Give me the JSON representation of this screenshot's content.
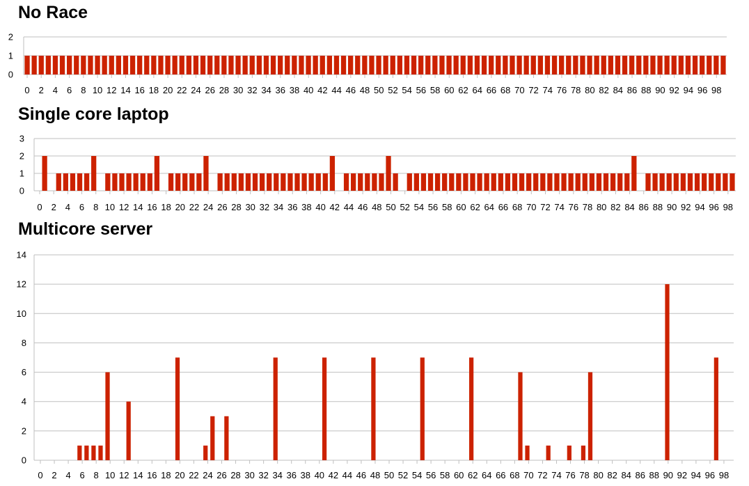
{
  "page": {
    "background": "#ffffff",
    "bar_color": "#cc2200",
    "grid_color": "#bfbfbf"
  },
  "chart_data": [
    {
      "type": "bar",
      "title": "No Race",
      "xlabel": "",
      "ylabel": "",
      "ylim": [
        0,
        2
      ],
      "yticks": [
        0,
        1,
        2
      ],
      "x_tick_labels": [
        "0",
        "2",
        "4",
        "6",
        "8",
        "10",
        "12",
        "14",
        "16",
        "18",
        "20",
        "22",
        "24",
        "26",
        "28",
        "30",
        "32",
        "34",
        "36",
        "38",
        "40",
        "42",
        "44",
        "46",
        "48",
        "50",
        "52",
        "54",
        "56",
        "58",
        "60",
        "62",
        "64",
        "66",
        "68",
        "70",
        "72",
        "74",
        "76",
        "78",
        "80",
        "82",
        "84",
        "86",
        "88",
        "90",
        "92",
        "94",
        "96",
        "98"
      ],
      "categories": [
        0,
        1,
        2,
        3,
        4,
        5,
        6,
        7,
        8,
        9,
        10,
        11,
        12,
        13,
        14,
        15,
        16,
        17,
        18,
        19,
        20,
        21,
        22,
        23,
        24,
        25,
        26,
        27,
        28,
        29,
        30,
        31,
        32,
        33,
        34,
        35,
        36,
        37,
        38,
        39,
        40,
        41,
        42,
        43,
        44,
        45,
        46,
        47,
        48,
        49,
        50,
        51,
        52,
        53,
        54,
        55,
        56,
        57,
        58,
        59,
        60,
        61,
        62,
        63,
        64,
        65,
        66,
        67,
        68,
        69,
        70,
        71,
        72,
        73,
        74,
        75,
        76,
        77,
        78,
        79,
        80,
        81,
        82,
        83,
        84,
        85,
        86,
        87,
        88,
        89,
        90,
        91,
        92,
        93,
        94,
        95,
        96,
        97,
        98,
        99
      ],
      "values": [
        1,
        1,
        1,
        1,
        1,
        1,
        1,
        1,
        1,
        1,
        1,
        1,
        1,
        1,
        1,
        1,
        1,
        1,
        1,
        1,
        1,
        1,
        1,
        1,
        1,
        1,
        1,
        1,
        1,
        1,
        1,
        1,
        1,
        1,
        1,
        1,
        1,
        1,
        1,
        1,
        1,
        1,
        1,
        1,
        1,
        1,
        1,
        1,
        1,
        1,
        1,
        1,
        1,
        1,
        1,
        1,
        1,
        1,
        1,
        1,
        1,
        1,
        1,
        1,
        1,
        1,
        1,
        1,
        1,
        1,
        1,
        1,
        1,
        1,
        1,
        1,
        1,
        1,
        1,
        1,
        1,
        1,
        1,
        1,
        1,
        1,
        1,
        1,
        1,
        1,
        1,
        1,
        1,
        1,
        1,
        1,
        1,
        1,
        1,
        1
      ],
      "grid": true,
      "legend": "none"
    },
    {
      "type": "bar",
      "title": "Single core laptop",
      "xlabel": "",
      "ylabel": "",
      "ylim": [
        0,
        3
      ],
      "yticks": [
        0,
        1,
        2,
        3
      ],
      "x_tick_labels": [
        "0",
        "2",
        "4",
        "6",
        "8",
        "10",
        "12",
        "14",
        "16",
        "18",
        "20",
        "22",
        "24",
        "26",
        "28",
        "30",
        "32",
        "34",
        "36",
        "38",
        "40",
        "42",
        "44",
        "46",
        "48",
        "50",
        "52",
        "54",
        "56",
        "58",
        "60",
        "62",
        "64",
        "66",
        "68",
        "70",
        "72",
        "74",
        "76",
        "78",
        "80",
        "82",
        "84",
        "86",
        "88",
        "90",
        "92",
        "94",
        "96",
        "98"
      ],
      "categories": [
        0,
        1,
        2,
        3,
        4,
        5,
        6,
        7,
        8,
        9,
        10,
        11,
        12,
        13,
        14,
        15,
        16,
        17,
        18,
        19,
        20,
        21,
        22,
        23,
        24,
        25,
        26,
        27,
        28,
        29,
        30,
        31,
        32,
        33,
        34,
        35,
        36,
        37,
        38,
        39,
        40,
        41,
        42,
        43,
        44,
        45,
        46,
        47,
        48,
        49,
        50,
        51,
        52,
        53,
        54,
        55,
        56,
        57,
        58,
        59,
        60,
        61,
        62,
        63,
        64,
        65,
        66,
        67,
        68,
        69,
        70,
        71,
        72,
        73,
        74,
        75,
        76,
        77,
        78,
        79,
        80,
        81,
        82,
        83,
        84,
        85,
        86,
        87,
        88,
        89,
        90,
        91,
        92,
        93,
        94,
        95,
        96,
        97,
        98,
        99
      ],
      "values": [
        0,
        2,
        0,
        1,
        1,
        1,
        1,
        1,
        2,
        0,
        1,
        1,
        1,
        1,
        1,
        1,
        1,
        2,
        0,
        1,
        1,
        1,
        1,
        1,
        2,
        0,
        1,
        1,
        1,
        1,
        1,
        1,
        1,
        1,
        1,
        1,
        1,
        1,
        1,
        1,
        1,
        1,
        2,
        0,
        1,
        1,
        1,
        1,
        1,
        1,
        2,
        1,
        0,
        1,
        1,
        1,
        1,
        1,
        1,
        1,
        1,
        1,
        1,
        1,
        1,
        1,
        1,
        1,
        1,
        1,
        1,
        1,
        1,
        1,
        1,
        1,
        1,
        1,
        1,
        1,
        1,
        1,
        1,
        1,
        1,
        2,
        0,
        1,
        1,
        1,
        1,
        1,
        1,
        1,
        1,
        1,
        1,
        1,
        1,
        1
      ],
      "grid": true,
      "legend": "none"
    },
    {
      "type": "bar",
      "title": "Multicore server",
      "xlabel": "",
      "ylabel": "",
      "ylim": [
        0,
        14
      ],
      "yticks": [
        0,
        2,
        4,
        6,
        8,
        10,
        12,
        14
      ],
      "x_tick_labels": [
        "0",
        "2",
        "4",
        "6",
        "8",
        "10",
        "12",
        "14",
        "16",
        "18",
        "20",
        "22",
        "24",
        "26",
        "28",
        "30",
        "32",
        "34",
        "36",
        "38",
        "40",
        "42",
        "44",
        "46",
        "48",
        "50",
        "52",
        "54",
        "56",
        "58",
        "60",
        "62",
        "64",
        "66",
        "68",
        "70",
        "72",
        "74",
        "76",
        "78",
        "80",
        "82",
        "84",
        "86",
        "88",
        "90",
        "92",
        "94",
        "96",
        "98"
      ],
      "categories": [
        0,
        1,
        2,
        3,
        4,
        5,
        6,
        7,
        8,
        9,
        10,
        11,
        12,
        13,
        14,
        15,
        16,
        17,
        18,
        19,
        20,
        21,
        22,
        23,
        24,
        25,
        26,
        27,
        28,
        29,
        30,
        31,
        32,
        33,
        34,
        35,
        36,
        37,
        38,
        39,
        40,
        41,
        42,
        43,
        44,
        45,
        46,
        47,
        48,
        49,
        50,
        51,
        52,
        53,
        54,
        55,
        56,
        57,
        58,
        59,
        60,
        61,
        62,
        63,
        64,
        65,
        66,
        67,
        68,
        69,
        70,
        71,
        72,
        73,
        74,
        75,
        76,
        77,
        78,
        79,
        80,
        81,
        82,
        83,
        84,
        85,
        86,
        87,
        88,
        89,
        90,
        91,
        92,
        93,
        94,
        95,
        96,
        97,
        98,
        99
      ],
      "values": [
        0,
        0,
        0,
        0,
        0,
        0,
        1,
        1,
        1,
        1,
        6,
        0,
        0,
        4,
        0,
        0,
        0,
        0,
        0,
        0,
        7,
        0,
        0,
        0,
        1,
        3,
        0,
        3,
        0,
        0,
        0,
        0,
        0,
        0,
        7,
        0,
        0,
        0,
        0,
        0,
        0,
        7,
        0,
        0,
        0,
        0,
        0,
        0,
        7,
        0,
        0,
        0,
        0,
        0,
        0,
        7,
        0,
        0,
        0,
        0,
        0,
        0,
        7,
        0,
        0,
        0,
        0,
        0,
        0,
        6,
        1,
        0,
        0,
        1,
        0,
        0,
        1,
        0,
        1,
        6,
        0,
        0,
        0,
        0,
        0,
        0,
        0,
        0,
        0,
        0,
        12,
        0,
        0,
        0,
        0,
        0,
        0,
        7,
        0,
        0
      ],
      "grid": true,
      "legend": "none"
    }
  ]
}
